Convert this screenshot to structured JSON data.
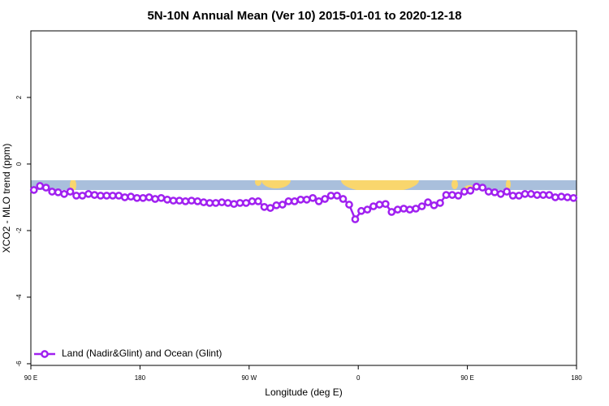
{
  "chart_data": {
    "type": "line",
    "title": "5N-10N Annual Mean (Ver 10)   2015-01-01 to 2020-12-18",
    "x_label": "Longitude (deg E)",
    "y_label": "XCO2 - MLO trend (ppm)",
    "xlim": [
      90,
      540
    ],
    "ylim": [
      -6.05,
      4
    ],
    "xticks": [
      {
        "value": 90,
        "label": "90 E"
      },
      {
        "value": 180,
        "label": "180"
      },
      {
        "value": 270,
        "label": "90 W"
      },
      {
        "value": 360,
        "label": "0"
      },
      {
        "value": 450,
        "label": "90 E"
      },
      {
        "value": 540,
        "label": "180"
      }
    ],
    "yticks": [
      2,
      0,
      -2,
      -4,
      -6
    ],
    "legend": "bottomleft",
    "x": [
      92.5,
      97.5,
      102.5,
      107.5,
      112.5,
      117.5,
      122.5,
      127.5,
      132.5,
      137.5,
      142.5,
      147.5,
      152.5,
      157.5,
      162.5,
      167.5,
      172.5,
      177.5,
      182.5,
      187.5,
      192.5,
      197.5,
      202.5,
      207.5,
      212.5,
      217.5,
      222.5,
      227.5,
      232.5,
      237.5,
      242.5,
      247.5,
      252.5,
      257.5,
      262.5,
      267.5,
      272.5,
      277.5,
      282.5,
      287.5,
      292.5,
      297.5,
      302.5,
      307.5,
      312.5,
      317.5,
      322.5,
      327.5,
      332.5,
      337.5,
      342.5,
      347.5,
      352.5,
      357.5,
      362.5,
      367.5,
      372.5,
      377.5,
      382.5,
      387.5,
      392.5,
      397.5,
      402.5,
      407.5,
      412.5,
      417.5,
      422.5,
      427.5,
      432.5,
      437.5,
      442.5,
      447.5,
      452.5,
      457.5,
      462.5,
      467.5,
      472.5,
      477.5,
      482.5,
      487.5,
      492.5,
      497.5,
      502.5,
      507.5,
      512.5,
      517.5,
      522.5,
      527.5,
      532.5,
      537.5
    ],
    "series": [
      {
        "name": "Land (Nadir&Glint) and Ocean (Glint)",
        "color": "#a020f0",
        "values": [
          -0.78,
          -0.66,
          -0.71,
          -0.83,
          -0.85,
          -0.9,
          -0.83,
          -0.95,
          -0.95,
          -0.9,
          -0.93,
          -0.95,
          -0.95,
          -0.95,
          -0.95,
          -1.0,
          -0.98,
          -1.02,
          -1.02,
          -1.0,
          -1.05,
          -1.02,
          -1.07,
          -1.1,
          -1.1,
          -1.12,
          -1.1,
          -1.12,
          -1.15,
          -1.17,
          -1.17,
          -1.15,
          -1.17,
          -1.2,
          -1.17,
          -1.17,
          -1.12,
          -1.12,
          -1.29,
          -1.32,
          -1.24,
          -1.22,
          -1.12,
          -1.12,
          -1.07,
          -1.07,
          -1.02,
          -1.12,
          -1.05,
          -0.95,
          -0.95,
          -1.05,
          -1.22,
          -1.66,
          -1.41,
          -1.37,
          -1.27,
          -1.22,
          -1.2,
          -1.44,
          -1.37,
          -1.34,
          -1.37,
          -1.34,
          -1.27,
          -1.15,
          -1.24,
          -1.17,
          -0.93,
          -0.93,
          -0.95,
          -0.83,
          -0.8,
          -0.68,
          -0.71,
          -0.83,
          -0.85,
          -0.9,
          -0.83,
          -0.95,
          -0.95,
          -0.9,
          -0.9,
          -0.93,
          -0.93,
          -0.93,
          -1.0,
          -0.98,
          -1.0,
          -1.02
        ]
      }
    ]
  }
}
